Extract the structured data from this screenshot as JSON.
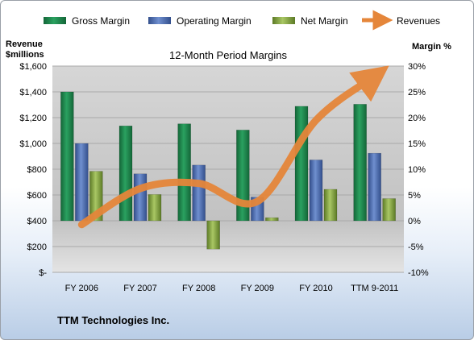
{
  "company_name": "TTM Technologies Inc.",
  "chart_data": {
    "type": "bar",
    "title": "12-Month Period Margins",
    "y_left_label": [
      "Revenue",
      "$millions"
    ],
    "y_right_label": "Margin %",
    "categories": [
      "FY 2006",
      "FY 2007",
      "FY 2008",
      "FY 2009",
      "FY 2010",
      "TTM 9-2011"
    ],
    "left_ticks": [
      "$-",
      "$200",
      "$400",
      "$600",
      "$800",
      "$1,000",
      "$1,200",
      "$1,400",
      "$1,600"
    ],
    "right_ticks": [
      "-10%",
      "-5%",
      "0%",
      "5%",
      "10%",
      "15%",
      "20%",
      "25%",
      "30%"
    ],
    "left_ylim": [
      0,
      1600
    ],
    "right_ylim": [
      -10,
      30
    ],
    "grid": true,
    "legend_position": "top",
    "series": [
      {
        "name": "Gross Margin",
        "kind": "bar",
        "axis": "right",
        "color": "#1f8a4c",
        "values": [
          25,
          18.4,
          18.8,
          17.6,
          22.2,
          22.6
        ]
      },
      {
        "name": "Operating Margin",
        "kind": "bar",
        "axis": "right",
        "color": "#4f6fb3",
        "values": [
          15,
          9.1,
          10.8,
          4.6,
          11.8,
          13.1
        ]
      },
      {
        "name": "Net Margin",
        "kind": "bar",
        "axis": "right",
        "color": "#8fb04a",
        "values": [
          9.6,
          5.1,
          -5.5,
          0.6,
          6.1,
          4.3
        ]
      },
      {
        "name": "Revenues",
        "kind": "line",
        "axis": "left",
        "color": "#e5863a",
        "values": [
          370,
          650,
          690,
          550,
          1180,
          1520
        ]
      }
    ]
  }
}
